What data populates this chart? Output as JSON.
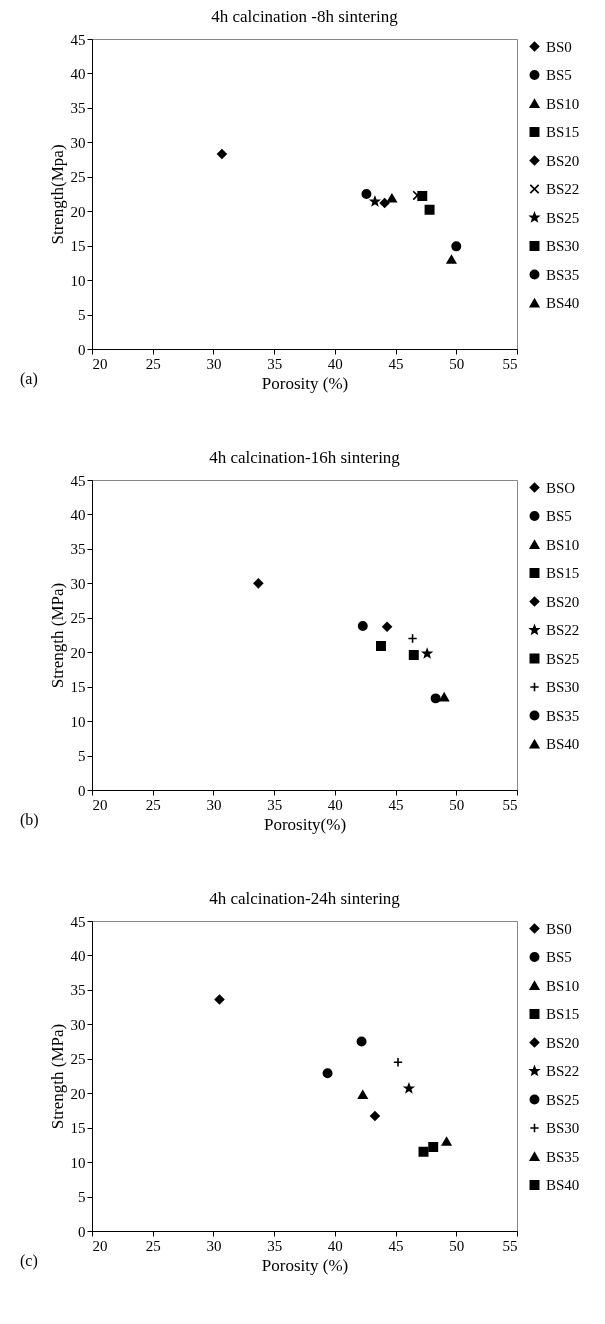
{
  "chart_data": [
    {
      "type": "scatter",
      "title": "4h calcination -8h sintering",
      "xlabel": "Porosity (%)",
      "ylabel": "Strength(Mpa)",
      "xlim": [
        20,
        55
      ],
      "xticks": [
        20,
        25,
        30,
        35,
        40,
        45,
        50,
        55
      ],
      "ylim": [
        0,
        45
      ],
      "yticks": [
        0,
        5,
        10,
        15,
        20,
        25,
        30,
        35,
        40,
        45
      ],
      "legend": "right",
      "annotations": [
        "(a)"
      ],
      "series": [
        {
          "name": "BS0",
          "color": "#000000",
          "marker": "diamond",
          "x": [
            30.7
          ],
          "values": [
            28.3
          ]
        },
        {
          "name": "BS5",
          "color": "#000000",
          "marker": "circle",
          "x": [
            42.6
          ],
          "values": [
            22.5
          ]
        },
        {
          "name": "BS10",
          "color": "#000000",
          "marker": "triangle",
          "x": [
            44.7
          ],
          "values": [
            21.9
          ]
        },
        {
          "name": "BS15",
          "color": "#000000",
          "marker": "square",
          "x": [
            47.2
          ],
          "values": [
            22.2
          ]
        },
        {
          "name": "BS20",
          "color": "#000000",
          "marker": "diamond",
          "x": [
            44.1
          ],
          "values": [
            21.2
          ]
        },
        {
          "name": "BS22",
          "color": "#000000",
          "marker": "cross",
          "x": [
            46.8
          ],
          "values": [
            22.3
          ]
        },
        {
          "name": "BS25",
          "color": "#000000",
          "marker": "star",
          "x": [
            43.3
          ],
          "values": [
            21.4
          ]
        },
        {
          "name": "BS30",
          "color": "#000000",
          "marker": "square",
          "x": [
            47.8
          ],
          "values": [
            20.2
          ]
        },
        {
          "name": "BS35",
          "color": "#000000",
          "marker": "circle",
          "x": [
            50.0
          ],
          "values": [
            14.9
          ]
        },
        {
          "name": "BS40",
          "color": "#000000",
          "marker": "triangle",
          "x": [
            49.6
          ],
          "values": [
            13.0
          ]
        }
      ]
    },
    {
      "type": "scatter",
      "title": "4h calcination-16h sintering",
      "xlabel": "Porosity(%)",
      "ylabel": "Strength (MPa)",
      "xlim": [
        20,
        55
      ],
      "xticks": [
        20,
        25,
        30,
        35,
        40,
        45,
        50,
        55
      ],
      "ylim": [
        0,
        45
      ],
      "yticks": [
        0,
        5,
        10,
        15,
        20,
        25,
        30,
        35,
        40,
        45
      ],
      "legend": "right",
      "annotations": [
        "(b)"
      ],
      "series": [
        {
          "name": "BSO",
          "color": "#000000",
          "marker": "diamond",
          "x": [
            33.7
          ],
          "values": [
            30.0
          ]
        },
        {
          "name": "BS5",
          "color": "#000000",
          "marker": "circle",
          "x": [
            42.3
          ],
          "values": [
            23.8
          ]
        },
        {
          "name": "BS10",
          "color": "#000000",
          "marker": "triangle"
        },
        {
          "name": "BS15",
          "color": "#000000",
          "marker": "square",
          "x": [
            46.5
          ],
          "values": [
            19.6
          ]
        },
        {
          "name": "BS20",
          "color": "#000000",
          "marker": "diamond",
          "x": [
            44.3
          ],
          "values": [
            23.7
          ]
        },
        {
          "name": "BS22",
          "color": "#000000",
          "marker": "star",
          "x": [
            47.6
          ],
          "values": [
            19.8
          ]
        },
        {
          "name": "BS25",
          "color": "#000000",
          "marker": "square",
          "x": [
            43.8
          ],
          "values": [
            20.9
          ]
        },
        {
          "name": "BS30",
          "color": "#000000",
          "marker": "plus",
          "x": [
            46.4
          ],
          "values": [
            22.0
          ]
        },
        {
          "name": "BS35",
          "color": "#000000",
          "marker": "circle",
          "x": [
            48.3
          ],
          "values": [
            13.3
          ]
        },
        {
          "name": "BS40",
          "color": "#000000",
          "marker": "triangle",
          "x": [
            49.0
          ],
          "values": [
            13.5
          ]
        }
      ]
    },
    {
      "type": "scatter",
      "title": "4h calcination-24h sintering",
      "xlabel": "Porosity (%)",
      "ylabel": "Strength (MPa)",
      "xlim": [
        20,
        55
      ],
      "xticks": [
        20,
        25,
        30,
        35,
        40,
        45,
        50,
        55
      ],
      "ylim": [
        0,
        45
      ],
      "yticks": [
        0,
        5,
        10,
        15,
        20,
        25,
        30,
        35,
        40,
        45
      ],
      "legend": "right",
      "annotations": [
        "(c)"
      ],
      "series": [
        {
          "name": "BS0",
          "color": "#000000",
          "marker": "diamond",
          "x": [
            30.5
          ],
          "values": [
            33.6
          ]
        },
        {
          "name": "BS5",
          "color": "#000000",
          "marker": "circle",
          "x": [
            39.4
          ],
          "values": [
            22.9
          ]
        },
        {
          "name": "BS10",
          "color": "#000000",
          "marker": "triangle",
          "x": [
            42.3
          ],
          "values": [
            19.8
          ]
        },
        {
          "name": "BS15",
          "color": "#000000",
          "marker": "square",
          "x": [
            47.3
          ],
          "values": [
            11.5
          ]
        },
        {
          "name": "BS20",
          "color": "#000000",
          "marker": "diamond",
          "x": [
            43.3
          ],
          "values": [
            16.7
          ]
        },
        {
          "name": "BS22",
          "color": "#000000",
          "marker": "star",
          "x": [
            46.1
          ],
          "values": [
            20.7
          ]
        },
        {
          "name": "BS25",
          "color": "#000000",
          "marker": "circle",
          "x": [
            42.2
          ],
          "values": [
            27.5
          ]
        },
        {
          "name": "BS30",
          "color": "#000000",
          "marker": "plus",
          "x": [
            45.2
          ],
          "values": [
            24.5
          ]
        },
        {
          "name": "BS35",
          "color": "#000000",
          "marker": "triangle",
          "x": [
            49.2
          ],
          "values": [
            13.0
          ]
        },
        {
          "name": "BS40",
          "color": "#000000",
          "marker": "square",
          "x": [
            48.1
          ],
          "values": [
            12.2
          ]
        }
      ]
    }
  ]
}
